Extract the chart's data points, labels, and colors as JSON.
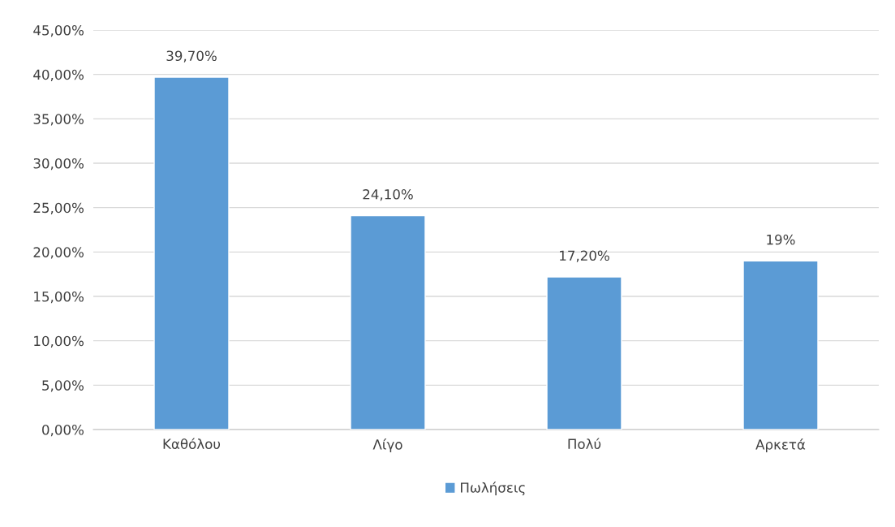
{
  "chart_data": {
    "type": "bar",
    "categories": [
      "Καθόλου",
      "Λίγο",
      "Πολύ",
      "Αρκετά"
    ],
    "series": [
      {
        "name": "Πωλήσεις",
        "color": "#5b9bd5",
        "values": [
          39.7,
          24.1,
          17.2,
          19
        ],
        "value_labels": [
          "39,70%",
          "24,10%",
          "17,20%",
          "19%"
        ]
      }
    ],
    "ylim": [
      0,
      45
    ],
    "yticks": [
      {
        "value": 0,
        "label": "0,00%"
      },
      {
        "value": 5,
        "label": "5,00%"
      },
      {
        "value": 10,
        "label": "10,00%"
      },
      {
        "value": 15,
        "label": "15,00%"
      },
      {
        "value": 20,
        "label": "20,00%"
      },
      {
        "value": 25,
        "label": "25,00%"
      },
      {
        "value": 30,
        "label": "30,00%"
      },
      {
        "value": 35,
        "label": "35,00%"
      },
      {
        "value": 40,
        "label": "40,00%"
      },
      {
        "value": 45,
        "label": "45,00%"
      }
    ],
    "grid": "y",
    "legend": "bottom"
  }
}
